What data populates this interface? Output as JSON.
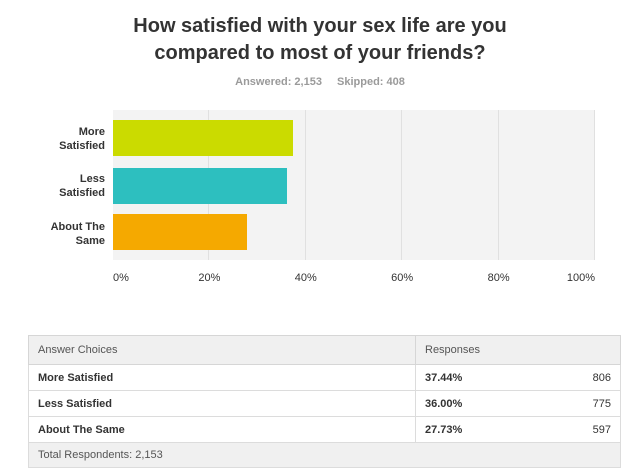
{
  "question": {
    "title_line1": "How satisfied with your sex life are you",
    "title_line2": "compared to most of your friends?"
  },
  "summary": {
    "answered": "Answered: 2,153",
    "skipped": "Skipped: 408"
  },
  "chart_data": {
    "type": "bar",
    "orientation": "horizontal",
    "categories": [
      {
        "line1": "More",
        "line2": "Satisfied"
      },
      {
        "line1": "Less",
        "line2": "Satisfied"
      },
      {
        "line1": "About The",
        "line2": "Same"
      }
    ],
    "values": [
      37.44,
      36.0,
      27.73
    ],
    "colors": [
      "#cbdb00",
      "#2dbfbf",
      "#f5a900"
    ],
    "xlim": [
      0,
      100
    ],
    "xticks": [
      "0%",
      "20%",
      "40%",
      "60%",
      "80%",
      "100%"
    ],
    "grid": true
  },
  "table": {
    "headers": {
      "choices": "Answer Choices",
      "responses": "Responses"
    },
    "rows": [
      {
        "choice": "More Satisfied",
        "percent": "37.44%",
        "count": "806"
      },
      {
        "choice": "Less Satisfied",
        "percent": "36.00%",
        "count": "775"
      },
      {
        "choice": "About The Same",
        "percent": "27.73%",
        "count": "597"
      }
    ],
    "total": "Total Respondents: 2,153"
  }
}
